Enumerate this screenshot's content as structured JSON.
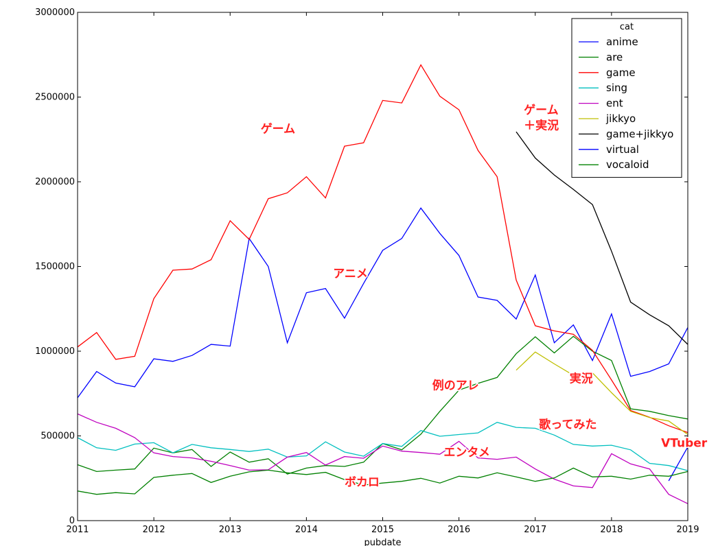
{
  "chart_data": {
    "type": "line",
    "title": "",
    "xlabel": "pubdate",
    "ylabel": "",
    "xlim": [
      2011,
      2019
    ],
    "ylim": [
      0,
      3000000
    ],
    "x_ticks": [
      "2011",
      "2012",
      "2013",
      "2014",
      "2015",
      "2016",
      "2017",
      "2018",
      "2019"
    ],
    "y_ticks": [
      "0",
      "500000",
      "1000000",
      "1500000",
      "2000000",
      "2500000",
      "3000000"
    ],
    "legend": {
      "title": "cat",
      "position": "top-right"
    },
    "x": [
      2011.0,
      2011.25,
      2011.5,
      2011.75,
      2012.0,
      2012.25,
      2012.5,
      2012.75,
      2013.0,
      2013.25,
      2013.5,
      2013.75,
      2014.0,
      2014.25,
      2014.5,
      2014.75,
      2015.0,
      2015.25,
      2015.5,
      2015.75,
      2016.0,
      2016.25,
      2016.5,
      2016.75,
      2017.0,
      2017.25,
      2017.5,
      2017.75,
      2018.0,
      2018.25,
      2018.5,
      2018.75,
      2019.0
    ],
    "series": [
      {
        "name": "anime",
        "color": "#0000ff",
        "values": [
          725000,
          880000,
          812000,
          790000,
          955000,
          940000,
          975000,
          1040000,
          1030000,
          1665000,
          1500000,
          1050000,
          1345000,
          1370000,
          1195000,
          1400000,
          1595000,
          1665000,
          1845000,
          1695000,
          1565000,
          1320000,
          1300000,
          1190000,
          1450000,
          1050000,
          1155000,
          945000,
          1220000,
          852000,
          880000,
          925000,
          1140000
        ]
      },
      {
        "name": "are",
        "color": "#008000",
        "values": [
          330000,
          290000,
          298000,
          305000,
          428000,
          400000,
          420000,
          320000,
          405000,
          345000,
          365000,
          275000,
          310000,
          325000,
          320000,
          345000,
          455000,
          418000,
          510000,
          645000,
          770000,
          810000,
          845000,
          985000,
          1085000,
          990000,
          1088000,
          1000000,
          945000,
          660000,
          645000,
          620000,
          600000
        ]
      },
      {
        "name": "game",
        "color": "#ff0000",
        "values": [
          1025000,
          1110000,
          952000,
          970000,
          1310000,
          1478000,
          1485000,
          1540000,
          1770000,
          1660000,
          1900000,
          1935000,
          2030000,
          1905000,
          2210000,
          2230000,
          2480000,
          2465000,
          2690000,
          2505000,
          2425000,
          2185000,
          2030000,
          1420000,
          1150000,
          1120000,
          1100000,
          1005000,
          830000,
          650000,
          610000,
          560000,
          520000
        ]
      },
      {
        "name": "sing",
        "color": "#00bfbf",
        "values": [
          490000,
          430000,
          415000,
          452000,
          460000,
          400000,
          450000,
          430000,
          420000,
          408000,
          422000,
          375000,
          382000,
          465000,
          405000,
          380000,
          455000,
          438000,
          532000,
          498000,
          508000,
          518000,
          580000,
          550000,
          545000,
          505000,
          450000,
          440000,
          445000,
          418000,
          338000,
          325000,
          295000
        ]
      },
      {
        "name": "ent",
        "color": "#bf00bf",
        "values": [
          630000,
          580000,
          545000,
          490000,
          400000,
          378000,
          370000,
          350000,
          325000,
          298000,
          300000,
          375000,
          402000,
          328000,
          378000,
          368000,
          440000,
          410000,
          402000,
          392000,
          468000,
          370000,
          362000,
          375000,
          305000,
          245000,
          205000,
          195000,
          395000,
          335000,
          305000,
          155000,
          100000
        ]
      },
      {
        "name": "jikkyo",
        "color": "#bfbf00",
        "values": [
          null,
          null,
          null,
          null,
          null,
          null,
          null,
          null,
          null,
          null,
          null,
          null,
          null,
          null,
          null,
          null,
          null,
          null,
          null,
          null,
          null,
          null,
          null,
          888000,
          995000,
          925000,
          858000,
          872000,
          755000,
          645000,
          608000,
          588000,
          508000
        ]
      },
      {
        "name": "game+jikkyo",
        "color": "#000000",
        "values": [
          null,
          null,
          null,
          null,
          null,
          null,
          null,
          null,
          null,
          null,
          null,
          null,
          null,
          null,
          null,
          null,
          null,
          null,
          null,
          null,
          null,
          null,
          null,
          2295000,
          2140000,
          2040000,
          1955000,
          1865000,
          1590000,
          1290000,
          1215000,
          1150000,
          1040000
        ]
      },
      {
        "name": "virtual",
        "color": "#0000ff",
        "values": [
          null,
          null,
          null,
          null,
          null,
          null,
          null,
          null,
          null,
          null,
          null,
          null,
          null,
          null,
          null,
          null,
          null,
          null,
          null,
          null,
          null,
          null,
          null,
          null,
          null,
          null,
          null,
          null,
          null,
          null,
          null,
          235000,
          435000
        ]
      },
      {
        "name": "vocaloid",
        "color": "#008000",
        "values": [
          175000,
          155000,
          165000,
          158000,
          255000,
          268000,
          278000,
          225000,
          262000,
          288000,
          298000,
          282000,
          272000,
          285000,
          242000,
          210000,
          222000,
          232000,
          250000,
          222000,
          262000,
          252000,
          282000,
          258000,
          232000,
          252000,
          310000,
          258000,
          262000,
          245000,
          268000,
          262000,
          290000
        ]
      }
    ],
    "annotations": [
      {
        "text": "ゲーム",
        "x": 2013.4,
        "y": 2290000
      },
      {
        "text": "ゲーム",
        "x": 2016.85,
        "y": 2400000
      },
      {
        "text": "＋実況",
        "x": 2016.85,
        "y": 2310000
      },
      {
        "text": "アニメ",
        "x": 2014.35,
        "y": 1435000
      },
      {
        "text": "例のアレ",
        "x": 2015.65,
        "y": 775000
      },
      {
        "text": "実況",
        "x": 2017.45,
        "y": 815000
      },
      {
        "text": "歌ってみた",
        "x": 2017.05,
        "y": 545000
      },
      {
        "text": "エンタメ",
        "x": 2015.8,
        "y": 380000
      },
      {
        "text": "VTuber",
        "x": 2018.65,
        "y": 435000
      },
      {
        "text": "ボカロ",
        "x": 2014.5,
        "y": 205000
      }
    ]
  }
}
